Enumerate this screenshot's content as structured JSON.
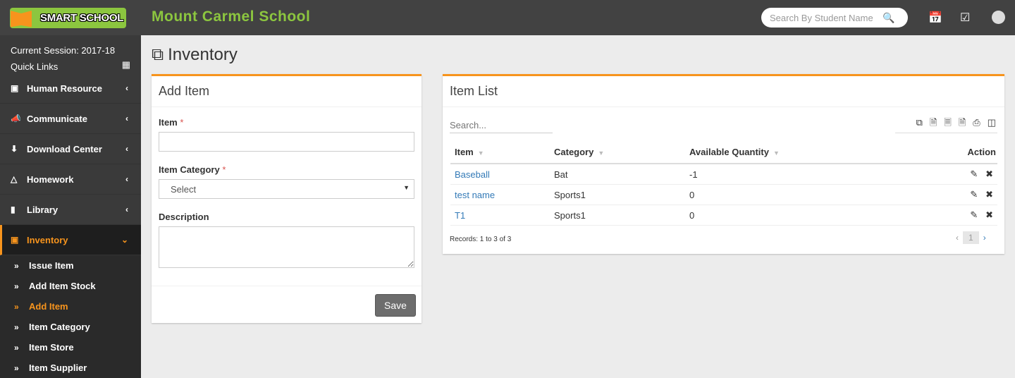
{
  "header": {
    "logo_text": "SMART SCHOOL",
    "school_name": "Mount Carmel School",
    "search_placeholder": "Search By Student Name"
  },
  "sidebar": {
    "session": "Current Session: 2017-18",
    "quick_links": "Quick Links",
    "items": [
      {
        "label": "Human Resource",
        "icon": "sitemap-icon"
      },
      {
        "label": "Communicate",
        "icon": "bullhorn-icon"
      },
      {
        "label": "Download Center",
        "icon": "download-icon"
      },
      {
        "label": "Homework",
        "icon": "flask-icon"
      },
      {
        "label": "Library",
        "icon": "book-icon"
      },
      {
        "label": "Inventory",
        "icon": "inventory-icon",
        "active": true
      }
    ],
    "subitems": [
      {
        "label": "Issue Item"
      },
      {
        "label": "Add Item Stock"
      },
      {
        "label": "Add Item",
        "active": true
      },
      {
        "label": "Item Category"
      },
      {
        "label": "Item Store"
      },
      {
        "label": "Item Supplier"
      }
    ]
  },
  "page": {
    "title": "Inventory"
  },
  "form": {
    "title": "Add Item",
    "item_label": "Item",
    "category_label": "Item Category",
    "category_value": "Select",
    "description_label": "Description",
    "required_mark": "*",
    "save": "Save"
  },
  "list": {
    "title": "Item List",
    "search_placeholder": "Search...",
    "columns": [
      "Item",
      "Category",
      "Available Quantity",
      "Action"
    ],
    "rows": [
      {
        "item": "Baseball",
        "category": "Bat",
        "qty": "-1"
      },
      {
        "item": "test name",
        "category": "Sports1",
        "qty": "0"
      },
      {
        "item": "T1",
        "category": "Sports1",
        "qty": "0"
      }
    ],
    "records": "Records: 1 to 3 of 3",
    "page": "1"
  },
  "colors": {
    "accent": "#f7941d",
    "brand_green": "#8cc63f",
    "header": "#424242"
  }
}
